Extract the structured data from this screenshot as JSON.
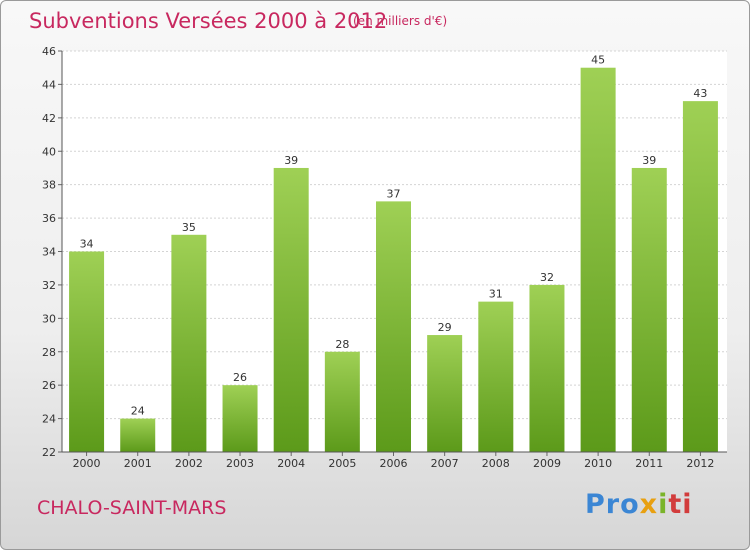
{
  "chart_data": {
    "type": "bar",
    "title": "Subventions Versées 2000 à 2012",
    "subtitle": "(en milliers d'€)",
    "categories": [
      "2000",
      "2001",
      "2002",
      "2003",
      "2004",
      "2005",
      "2006",
      "2007",
      "2008",
      "2009",
      "2010",
      "2011",
      "2012"
    ],
    "values": [
      34,
      24,
      35,
      26,
      39,
      28,
      37,
      29,
      31,
      32,
      45,
      39,
      43
    ],
    "ylim": [
      22,
      46
    ],
    "yticks": [
      22,
      24,
      26,
      28,
      30,
      32,
      34,
      36,
      38,
      40,
      42,
      44,
      46
    ],
    "grid": true,
    "bar_color_top": "#9fd055",
    "bar_color_bottom": "#5c9a1a",
    "xlabel": "",
    "ylabel": ""
  },
  "footer": {
    "place": "CHALO-SAINT-MARS",
    "logo": [
      "Pro",
      "x",
      "i",
      "ti"
    ]
  }
}
